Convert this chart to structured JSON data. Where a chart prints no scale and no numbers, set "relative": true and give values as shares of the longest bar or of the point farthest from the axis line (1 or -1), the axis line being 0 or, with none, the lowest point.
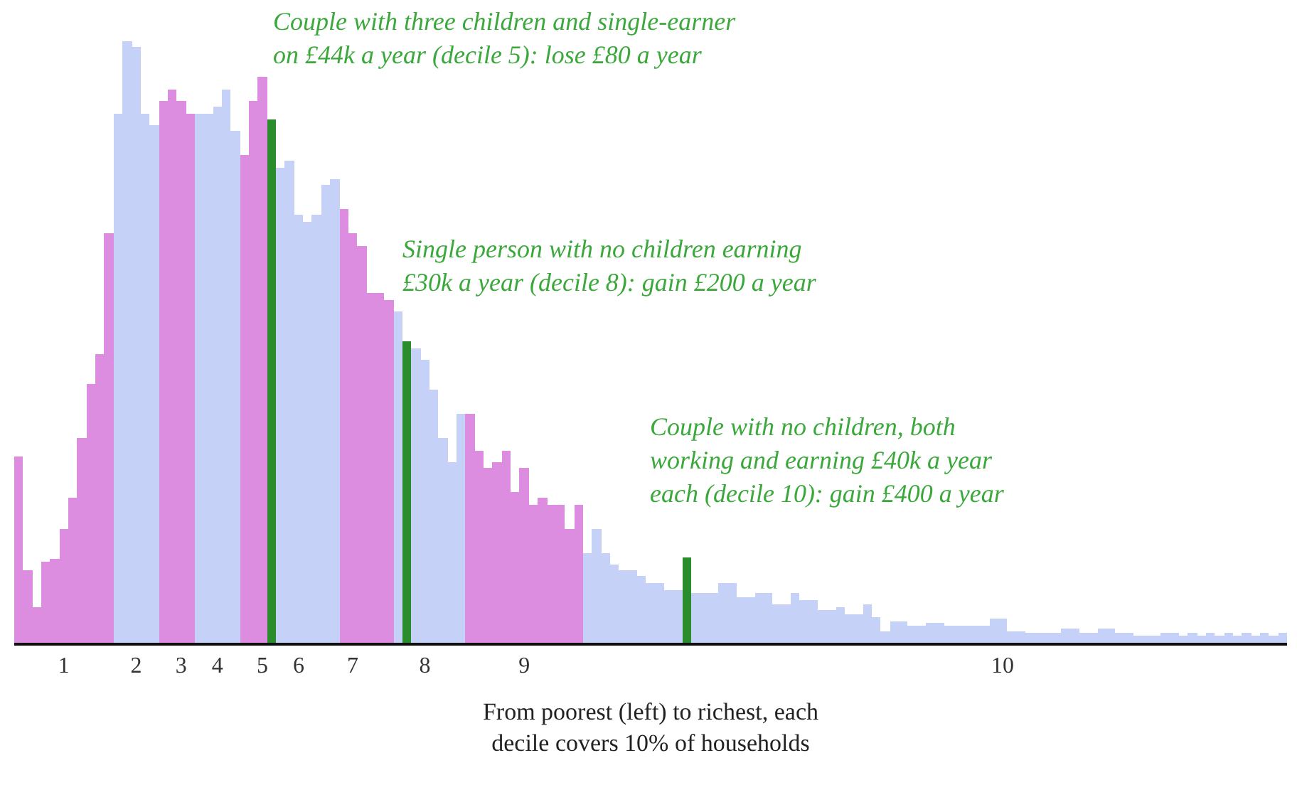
{
  "chart_data": {
    "type": "bar",
    "relative": true,
    "xlabel": "From poorest (left) to richest, each decile covers 10% of households",
    "annotations": [
      "Couple with three children and single-earner on £44k a year (decile 5): lose £80 a year",
      "Single person with no children earning £30k a year (decile 8): gain £200 a year",
      "Couple with no children, both working and earning £40k a year each (decile 10): gain £400 a year"
    ],
    "categories": [
      null,
      null,
      null,
      null,
      null,
      "1",
      null,
      null,
      null,
      null,
      null,
      null,
      null,
      "2",
      null,
      null,
      null,
      null,
      "3",
      null,
      null,
      null,
      "4",
      null,
      null,
      null,
      null,
      "5",
      null,
      null,
      null,
      "6",
      null,
      null,
      null,
      null,
      null,
      "7",
      null,
      null,
      null,
      null,
      null,
      null,
      null,
      "8",
      null,
      null,
      null,
      null,
      null,
      null,
      null,
      null,
      null,
      null,
      "9",
      null,
      null,
      null,
      null,
      null,
      null,
      null,
      null,
      null,
      null,
      null,
      null,
      null,
      null,
      null,
      null,
      null,
      null,
      null,
      null,
      null,
      null,
      null,
      null,
      null,
      null,
      null,
      null,
      null,
      null,
      null,
      null,
      null,
      null,
      null,
      null,
      null,
      null,
      null,
      null,
      null,
      null,
      null,
      null,
      null,
      null,
      null,
      null,
      null,
      null,
      null,
      null,
      "10",
      null,
      null,
      null,
      null,
      null,
      null,
      null,
      null,
      null,
      null,
      null,
      null,
      null,
      null,
      null,
      null,
      null,
      null,
      null,
      null,
      null,
      null,
      null,
      null,
      null,
      null,
      null,
      null,
      null,
      null,
      null
    ],
    "values": [
      0.31,
      0.12,
      0.06,
      0.135,
      0.14,
      0.19,
      0.24,
      0.34,
      0.43,
      0.48,
      0.68,
      0.88,
      1.0,
      0.99,
      0.88,
      0.86,
      0.9,
      0.92,
      0.9,
      0.88,
      0.88,
      0.88,
      0.89,
      0.92,
      0.85,
      0.81,
      0.9,
      0.94,
      0.87,
      0.79,
      0.8,
      0.71,
      0.7,
      0.71,
      0.76,
      0.77,
      0.72,
      0.68,
      0.66,
      0.58,
      0.58,
      0.57,
      0.55,
      0.5,
      0.49,
      0.47,
      0.42,
      0.34,
      0.3,
      0.38,
      0.38,
      0.32,
      0.29,
      0.3,
      0.32,
      0.25,
      0.29,
      0.23,
      0.24,
      0.23,
      0.23,
      0.19,
      0.23,
      0.15,
      0.19,
      0.15,
      0.13,
      0.12,
      0.12,
      0.11,
      0.1,
      0.1,
      0.087,
      0.087,
      0.142,
      0.083,
      0.083,
      0.083,
      0.1,
      0.1,
      0.075,
      0.075,
      0.083,
      0.083,
      0.063,
      0.063,
      0.083,
      0.07,
      0.07,
      0.055,
      0.055,
      0.06,
      0.047,
      0.047,
      0.063,
      0.043,
      0.02,
      0.036,
      0.036,
      0.028,
      0.028,
      0.032,
      0.032,
      0.028,
      0.028,
      0.028,
      0.028,
      0.028,
      0.04,
      0.04,
      0.02,
      0.02,
      0.016,
      0.016,
      0.016,
      0.016,
      0.024,
      0.024,
      0.016,
      0.016,
      0.024,
      0.024,
      0.016,
      0.016,
      0.012,
      0.012,
      0.012,
      0.016,
      0.016,
      0.012,
      0.016,
      0.012,
      0.016,
      0.012,
      0.016,
      0.012,
      0.016,
      0.012,
      0.016,
      0.012,
      0.016
    ],
    "colors": [
      "#dc8de0",
      "#dc8de0",
      "#dc8de0",
      "#dc8de0",
      "#dc8de0",
      "#dc8de0",
      "#dc8de0",
      "#dc8de0",
      "#dc8de0",
      "#dc8de0",
      "#dc8de0",
      "#c5d1f7",
      "#c5d1f7",
      "#c5d1f7",
      "#c5d1f7",
      "#c5d1f7",
      "#dc8de0",
      "#dc8de0",
      "#dc8de0",
      "#dc8de0",
      "#c5d1f7",
      "#c5d1f7",
      "#c5d1f7",
      "#c5d1f7",
      "#c5d1f7",
      "#dc8de0",
      "#dc8de0",
      "#dc8de0",
      "#2a8c2a",
      "#c5d1f7",
      "#c5d1f7",
      "#c5d1f7",
      "#c5d1f7",
      "#c5d1f7",
      "#c5d1f7",
      "#c5d1f7",
      "#dc8de0",
      "#dc8de0",
      "#dc8de0",
      "#dc8de0",
      "#dc8de0",
      "#dc8de0",
      "#c5d1f7",
      "#2a8c2a",
      "#c5d1f7",
      "#c5d1f7",
      "#c5d1f7",
      "#c5d1f7",
      "#c5d1f7",
      "#c5d1f7",
      "#dc8de0",
      "#dc8de0",
      "#dc8de0",
      "#dc8de0",
      "#dc8de0",
      "#dc8de0",
      "#dc8de0",
      "#dc8de0",
      "#dc8de0",
      "#dc8de0",
      "#dc8de0",
      "#dc8de0",
      "#dc8de0",
      "#c5d1f7",
      "#c5d1f7",
      "#c5d1f7",
      "#c5d1f7",
      "#c5d1f7",
      "#c5d1f7",
      "#c5d1f7",
      "#c5d1f7",
      "#c5d1f7",
      "#c5d1f7",
      "#c5d1f7",
      "#2a8c2a",
      "#c5d1f7",
      "#c5d1f7",
      "#c5d1f7",
      "#c5d1f7",
      "#c5d1f7",
      "#c5d1f7",
      "#c5d1f7",
      "#c5d1f7",
      "#c5d1f7",
      "#c5d1f7",
      "#c5d1f7",
      "#c5d1f7",
      "#c5d1f7",
      "#c5d1f7",
      "#c5d1f7",
      "#c5d1f7",
      "#c5d1f7",
      "#c5d1f7",
      "#c5d1f7",
      "#c5d1f7",
      "#c5d1f7",
      "#c5d1f7",
      "#c5d1f7",
      "#c5d1f7",
      "#c5d1f7",
      "#c5d1f7",
      "#c5d1f7",
      "#c5d1f7",
      "#c5d1f7",
      "#c5d1f7",
      "#c5d1f7",
      "#c5d1f7",
      "#c5d1f7",
      "#c5d1f7",
      "#c5d1f7",
      "#c5d1f7",
      "#c5d1f7",
      "#c5d1f7",
      "#c5d1f7",
      "#c5d1f7",
      "#c5d1f7",
      "#c5d1f7",
      "#c5d1f7",
      "#c5d1f7",
      "#c5d1f7",
      "#c5d1f7",
      "#c5d1f7",
      "#c5d1f7",
      "#c5d1f7",
      "#c5d1f7",
      "#c5d1f7",
      "#c5d1f7",
      "#c5d1f7",
      "#c5d1f7",
      "#c5d1f7",
      "#c5d1f7",
      "#c5d1f7",
      "#c5d1f7",
      "#c5d1f7",
      "#c5d1f7",
      "#c5d1f7",
      "#c5d1f7",
      "#c5d1f7",
      "#c5d1f7",
      "#c5d1f7",
      "#c5d1f7"
    ]
  }
}
